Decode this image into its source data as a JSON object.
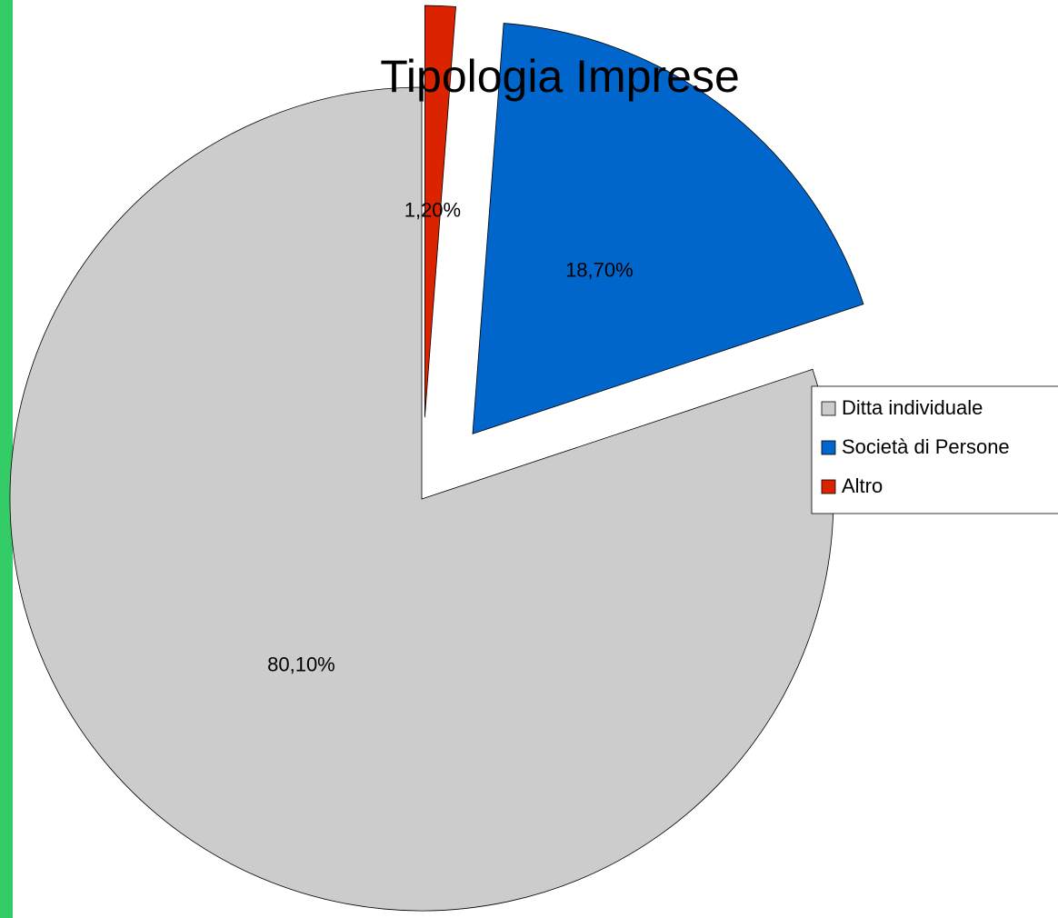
{
  "chart_data": {
    "type": "pie",
    "title": "Tipologia Imprese",
    "categories": [
      "Ditta individuale",
      "Società di Persone",
      "Altro"
    ],
    "values": [
      80.1,
      18.7,
      1.2
    ],
    "value_labels": [
      "80,10%",
      "18,70%",
      "1,20%"
    ],
    "colors": [
      "#cccccc",
      "#0066cc",
      "#dc2300"
    ],
    "legend": "right"
  }
}
